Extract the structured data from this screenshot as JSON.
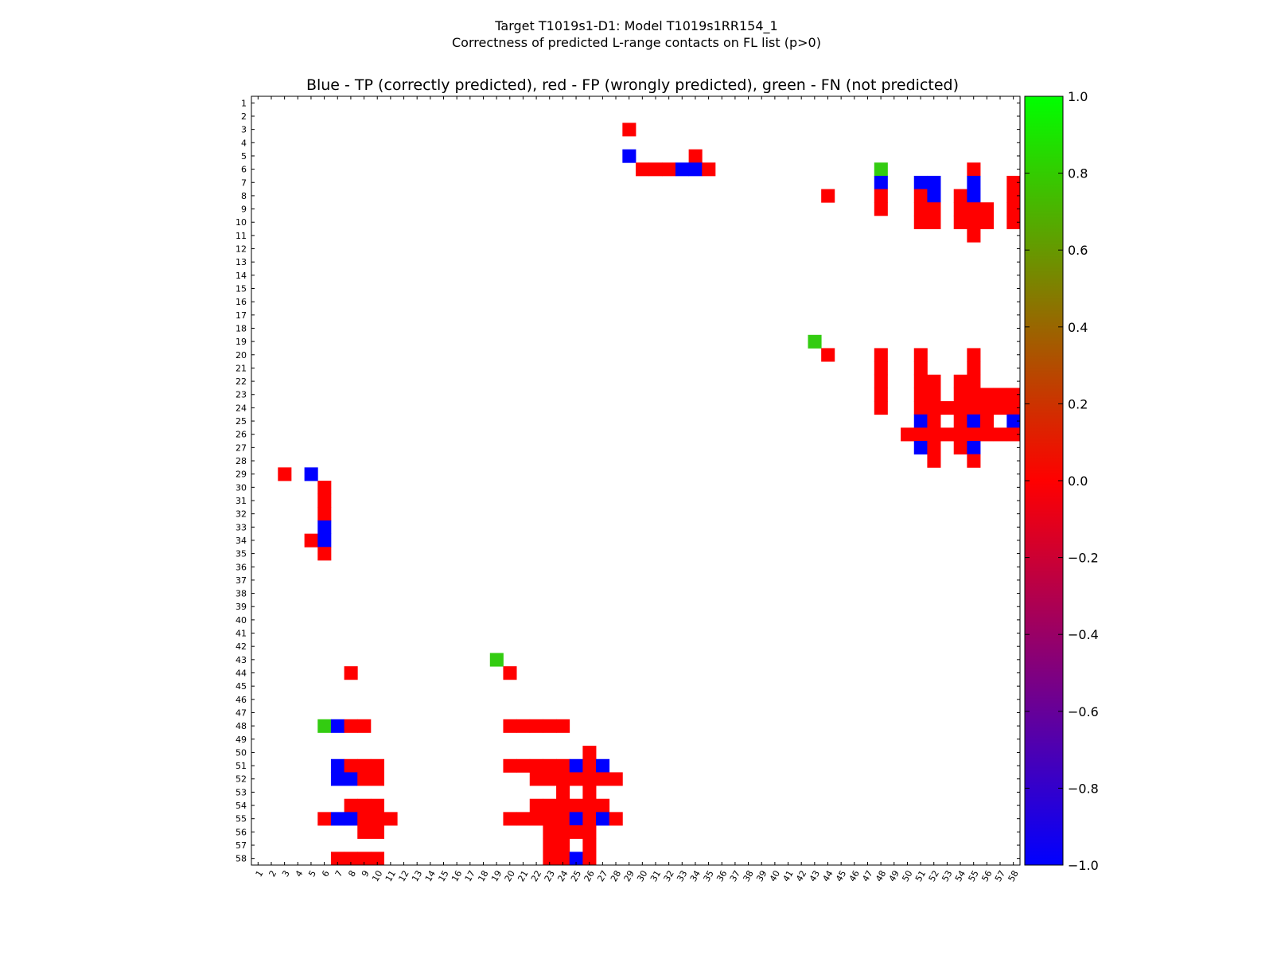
{
  "chart_data": {
    "type": "heatmap",
    "suptitle_line1": "Target T1019s1-D1: Model T1019s1RR154_1",
    "suptitle_line2": "Correctness of predicted L-range contacts on FL list (p>0)",
    "title": "Blue - TP (correctly predicted), red - FP (wrongly predicted), green - FN (not predicted)",
    "n": 58,
    "x_ticks": [
      "1",
      "2",
      "3",
      "4",
      "5",
      "6",
      "7",
      "8",
      "9",
      "10",
      "11",
      "12",
      "13",
      "14",
      "15",
      "16",
      "17",
      "18",
      "19",
      "20",
      "21",
      "22",
      "23",
      "24",
      "25",
      "26",
      "27",
      "28",
      "29",
      "30",
      "31",
      "32",
      "33",
      "34",
      "35",
      "36",
      "37",
      "38",
      "39",
      "40",
      "41",
      "42",
      "43",
      "44",
      "45",
      "46",
      "47",
      "48",
      "49",
      "50",
      "51",
      "52",
      "53",
      "54",
      "55",
      "56",
      "57",
      "58"
    ],
    "y_ticks": [
      "1",
      "2",
      "3",
      "4",
      "5",
      "6",
      "7",
      "8",
      "9",
      "10",
      "11",
      "12",
      "13",
      "14",
      "15",
      "16",
      "17",
      "18",
      "19",
      "20",
      "21",
      "22",
      "23",
      "24",
      "25",
      "26",
      "27",
      "28",
      "29",
      "30",
      "31",
      "32",
      "33",
      "34",
      "35",
      "36",
      "37",
      "38",
      "39",
      "40",
      "41",
      "42",
      "43",
      "44",
      "45",
      "46",
      "47",
      "48",
      "49",
      "50",
      "51",
      "52",
      "53",
      "54",
      "55",
      "56",
      "57",
      "58"
    ],
    "colorbar": {
      "min": -1.0,
      "max": 1.0,
      "ticks": [
        "1.0",
        "0.8",
        "0.6",
        "0.4",
        "0.2",
        "0.0",
        "−0.2",
        "−0.4",
        "−0.6",
        "−0.8",
        "−1.0"
      ],
      "tick_values": [
        1.0,
        0.8,
        0.6,
        0.4,
        0.2,
        0.0,
        -0.2,
        -0.4,
        -0.6,
        -0.8,
        -1.0
      ],
      "colormap": [
        "#0000ff",
        "#ff0000",
        "#00ff00"
      ]
    },
    "cell_colors": {
      "TP": "#0000ff",
      "FP": "#ff0000",
      "FN": "#33cc11"
    },
    "cells_note": "each cell = [row, col, value]; -1 TP (blue), 0 FP (red), 0.8 FN (green)",
    "cells": [
      [
        3,
        29,
        0
      ],
      [
        5,
        29,
        -1
      ],
      [
        5,
        34,
        0
      ],
      [
        6,
        30,
        0
      ],
      [
        6,
        31,
        0
      ],
      [
        6,
        32,
        0
      ],
      [
        6,
        33,
        -1
      ],
      [
        6,
        34,
        -1
      ],
      [
        6,
        35,
        0
      ],
      [
        6,
        48,
        0.8
      ],
      [
        6,
        55,
        0
      ],
      [
        7,
        48,
        -1
      ],
      [
        7,
        51,
        -1
      ],
      [
        7,
        52,
        -1
      ],
      [
        7,
        55,
        -1
      ],
      [
        7,
        58,
        0
      ],
      [
        8,
        44,
        0
      ],
      [
        8,
        48,
        0
      ],
      [
        8,
        51,
        0
      ],
      [
        8,
        52,
        -1
      ],
      [
        8,
        54,
        0
      ],
      [
        8,
        55,
        -1
      ],
      [
        8,
        58,
        0
      ],
      [
        9,
        48,
        0
      ],
      [
        9,
        51,
        0
      ],
      [
        9,
        52,
        0
      ],
      [
        9,
        54,
        0
      ],
      [
        9,
        55,
        0
      ],
      [
        9,
        56,
        0
      ],
      [
        9,
        58,
        0
      ],
      [
        10,
        51,
        0
      ],
      [
        10,
        52,
        0
      ],
      [
        10,
        54,
        0
      ],
      [
        10,
        55,
        0
      ],
      [
        10,
        56,
        0
      ],
      [
        10,
        58,
        0
      ],
      [
        11,
        55,
        0
      ],
      [
        19,
        43,
        0.8
      ],
      [
        20,
        44,
        0
      ],
      [
        20,
        48,
        0
      ],
      [
        20,
        51,
        0
      ],
      [
        20,
        55,
        0
      ],
      [
        21,
        48,
        0
      ],
      [
        21,
        51,
        0
      ],
      [
        21,
        55,
        0
      ],
      [
        22,
        48,
        0
      ],
      [
        22,
        51,
        0
      ],
      [
        22,
        52,
        0
      ],
      [
        22,
        54,
        0
      ],
      [
        22,
        55,
        0
      ],
      [
        23,
        48,
        0
      ],
      [
        23,
        51,
        0
      ],
      [
        23,
        52,
        0
      ],
      [
        23,
        54,
        0
      ],
      [
        23,
        55,
        0
      ],
      [
        23,
        56,
        0
      ],
      [
        23,
        57,
        0
      ],
      [
        23,
        58,
        0
      ],
      [
        24,
        48,
        0
      ],
      [
        24,
        51,
        0
      ],
      [
        24,
        52,
        0
      ],
      [
        24,
        53,
        0
      ],
      [
        24,
        54,
        0
      ],
      [
        24,
        55,
        0
      ],
      [
        24,
        56,
        0
      ],
      [
        24,
        57,
        0
      ],
      [
        24,
        58,
        0
      ],
      [
        25,
        51,
        -1
      ],
      [
        25,
        52,
        0
      ],
      [
        25,
        54,
        0
      ],
      [
        25,
        55,
        -1
      ],
      [
        25,
        56,
        0
      ],
      [
        25,
        58,
        -1
      ],
      [
        26,
        50,
        0
      ],
      [
        26,
        51,
        0
      ],
      [
        26,
        52,
        0
      ],
      [
        26,
        53,
        0
      ],
      [
        26,
        54,
        0
      ],
      [
        26,
        55,
        0
      ],
      [
        26,
        56,
        0
      ],
      [
        26,
        57,
        0
      ],
      [
        26,
        58,
        0
      ],
      [
        27,
        51,
        -1
      ],
      [
        27,
        52,
        0
      ],
      [
        27,
        54,
        0
      ],
      [
        27,
        55,
        -1
      ],
      [
        28,
        52,
        0
      ],
      [
        28,
        55,
        0
      ],
      [
        29,
        3,
        0
      ],
      [
        29,
        5,
        -1
      ],
      [
        30,
        6,
        0
      ],
      [
        31,
        6,
        0
      ],
      [
        32,
        6,
        0
      ],
      [
        33,
        6,
        -1
      ],
      [
        34,
        5,
        0
      ],
      [
        34,
        6,
        -1
      ],
      [
        35,
        6,
        0
      ],
      [
        43,
        19,
        0.8
      ],
      [
        44,
        8,
        0
      ],
      [
        44,
        20,
        0
      ],
      [
        48,
        6,
        0.8
      ],
      [
        48,
        7,
        -1
      ],
      [
        48,
        8,
        0
      ],
      [
        48,
        9,
        0
      ],
      [
        48,
        20,
        0
      ],
      [
        48,
        21,
        0
      ],
      [
        48,
        22,
        0
      ],
      [
        48,
        23,
        0
      ],
      [
        48,
        24,
        0
      ],
      [
        50,
        26,
        0
      ],
      [
        51,
        7,
        -1
      ],
      [
        51,
        8,
        0
      ],
      [
        51,
        9,
        0
      ],
      [
        51,
        10,
        0
      ],
      [
        51,
        20,
        0
      ],
      [
        51,
        21,
        0
      ],
      [
        51,
        22,
        0
      ],
      [
        51,
        23,
        0
      ],
      [
        51,
        24,
        0
      ],
      [
        51,
        25,
        -1
      ],
      [
        51,
        26,
        0
      ],
      [
        51,
        27,
        -1
      ],
      [
        52,
        7,
        -1
      ],
      [
        52,
        8,
        -1
      ],
      [
        52,
        9,
        0
      ],
      [
        52,
        10,
        0
      ],
      [
        52,
        22,
        0
      ],
      [
        52,
        23,
        0
      ],
      [
        52,
        24,
        0
      ],
      [
        52,
        25,
        0
      ],
      [
        52,
        26,
        0
      ],
      [
        52,
        27,
        0
      ],
      [
        52,
        28,
        0
      ],
      [
        53,
        24,
        0
      ],
      [
        53,
        26,
        0
      ],
      [
        54,
        8,
        0
      ],
      [
        54,
        9,
        0
      ],
      [
        54,
        10,
        0
      ],
      [
        54,
        22,
        0
      ],
      [
        54,
        23,
        0
      ],
      [
        54,
        24,
        0
      ],
      [
        54,
        25,
        0
      ],
      [
        54,
        26,
        0
      ],
      [
        54,
        27,
        0
      ],
      [
        55,
        6,
        0
      ],
      [
        55,
        7,
        -1
      ],
      [
        55,
        8,
        -1
      ],
      [
        55,
        9,
        0
      ],
      [
        55,
        10,
        0
      ],
      [
        55,
        11,
        0
      ],
      [
        55,
        20,
        0
      ],
      [
        55,
        21,
        0
      ],
      [
        55,
        22,
        0
      ],
      [
        55,
        23,
        0
      ],
      [
        55,
        24,
        0
      ],
      [
        55,
        25,
        -1
      ],
      [
        55,
        26,
        0
      ],
      [
        55,
        27,
        -1
      ],
      [
        55,
        28,
        0
      ],
      [
        56,
        9,
        0
      ],
      [
        56,
        10,
        0
      ],
      [
        56,
        23,
        0
      ],
      [
        56,
        24,
        0
      ],
      [
        56,
        25,
        0
      ],
      [
        56,
        26,
        0
      ],
      [
        57,
        23,
        0
      ],
      [
        57,
        24,
        0
      ],
      [
        57,
        26,
        0
      ],
      [
        58,
        7,
        0
      ],
      [
        58,
        8,
        0
      ],
      [
        58,
        9,
        0
      ],
      [
        58,
        10,
        0
      ],
      [
        58,
        23,
        0
      ],
      [
        58,
        24,
        0
      ],
      [
        58,
        25,
        -1
      ],
      [
        58,
        26,
        0
      ]
    ]
  }
}
